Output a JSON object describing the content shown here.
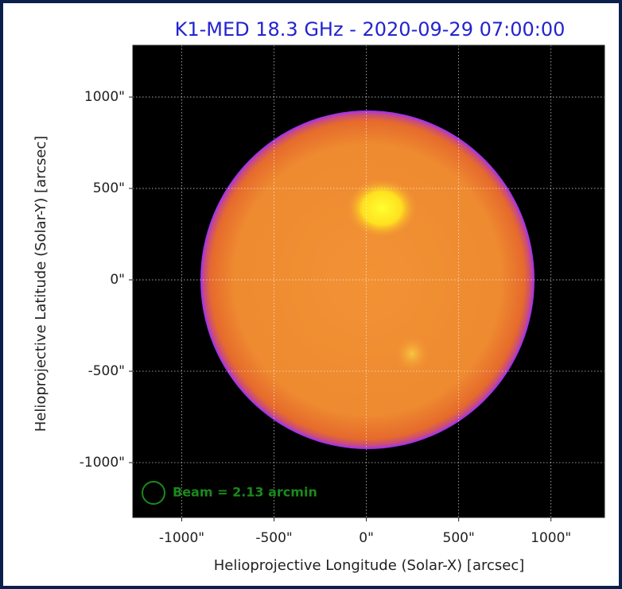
{
  "chart_data": {
    "type": "image",
    "title": "K1-MED 18.3 GHz - 2020-09-29 07:00:00",
    "x_label": "Helioprojective Longitude (Solar-X) [arcsec]",
    "y_label": "Helioprojective Latitude (Solar-Y) [arcsec]",
    "annotation": "Beam = 2.13 arcmin",
    "xlim": [
      -1265,
      1290
    ],
    "ylim": [
      -1300,
      1283
    ],
    "xticks": [
      {
        "value": -1000,
        "label": "-1000\""
      },
      {
        "value": -500,
        "label": "-500\""
      },
      {
        "value": 0,
        "label": "0\""
      },
      {
        "value": 500,
        "label": "500\""
      },
      {
        "value": 1000,
        "label": "1000\""
      }
    ],
    "yticks": [
      {
        "value": -1000,
        "label": "-1000\""
      },
      {
        "value": -500,
        "label": "-500\""
      },
      {
        "value": 0,
        "label": "0\""
      },
      {
        "value": 500,
        "label": "500\""
      },
      {
        "value": 1000,
        "label": "1000\""
      }
    ],
    "grid": true
  }
}
